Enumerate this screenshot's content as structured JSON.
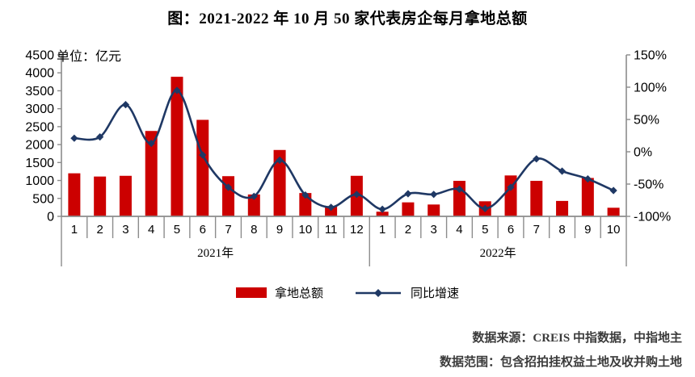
{
  "title": "图：2021-2022 年 10 月 50 家代表房企每月拿地总额",
  "unit_label": "单位：亿元",
  "legend": {
    "bar_label": "拿地总额",
    "line_label": "同比增速"
  },
  "footer": {
    "source": "数据来源：CREIS 中指数据，中指地主",
    "scope": "数据范围：包含招拍挂权益土地及收并购土地"
  },
  "colors": {
    "bar": "#cc0000",
    "line": "#1f3864",
    "axis": "#8c8c8c",
    "text": "#000000",
    "footer_text": "#3b3b3b"
  },
  "chart_data": {
    "type": "bar",
    "title": "图：2021-2022 年 10 月 50 家代表房企每月拿地总额",
    "categories": [
      "1",
      "2",
      "3",
      "4",
      "5",
      "6",
      "7",
      "8",
      "9",
      "10",
      "11",
      "12",
      "1",
      "2",
      "3",
      "4",
      "5",
      "6",
      "7",
      "8",
      "9",
      "10"
    ],
    "year_groups": [
      {
        "label": "2021年",
        "count": 12
      },
      {
        "label": "2022年",
        "count": 10
      }
    ],
    "series": [
      {
        "name": "拿地总额",
        "type": "bar",
        "axis": "left",
        "unit": "亿元",
        "values": [
          1200,
          1110,
          1130,
          2380,
          3890,
          2690,
          1120,
          610,
          1850,
          650,
          280,
          1130,
          130,
          390,
          330,
          990,
          420,
          1140,
          990,
          430,
          1070,
          240
        ]
      },
      {
        "name": "同比增速",
        "type": "line",
        "axis": "right",
        "unit": "%",
        "values": [
          21,
          23,
          73,
          13,
          95,
          -5,
          -55,
          -69,
          -13,
          -67,
          -86,
          -66,
          -89,
          -65,
          -66,
          -58,
          -88,
          -55,
          -11,
          -30,
          -42,
          -60
        ]
      }
    ],
    "left_axis": {
      "min": 0,
      "max": 4500,
      "step": 500,
      "ticks": [
        "4500",
        "4000",
        "3500",
        "3000",
        "2500",
        "2000",
        "1500",
        "1000",
        "500",
        "0"
      ]
    },
    "right_axis": {
      "min": -100,
      "max": 150,
      "step": 50,
      "ticks": [
        "150%",
        "100%",
        "50%",
        "0%",
        "-50%",
        "-100%"
      ]
    },
    "grid": false,
    "legend_position": "bottom"
  }
}
